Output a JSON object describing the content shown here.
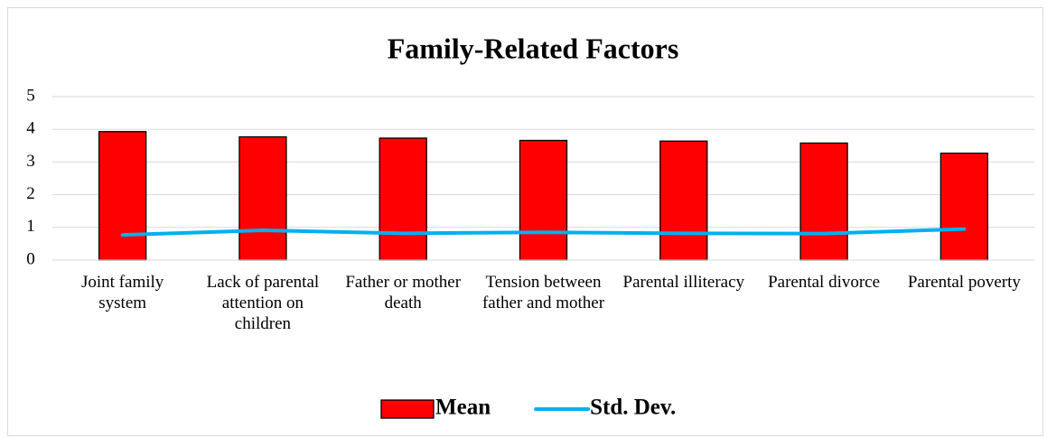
{
  "chart_data": {
    "type": "bar",
    "title": "Family-Related Factors",
    "categories": [
      "Joint family system",
      "Lack of parental attention on children",
      "Father or mother death",
      "Tension between father and mother",
      "Parental illiteracy",
      "Parental divorce",
      "Parental poverty"
    ],
    "series": [
      {
        "name": "Mean",
        "type": "bar",
        "color": "#ff0000",
        "values": [
          3.93,
          3.77,
          3.73,
          3.66,
          3.64,
          3.58,
          3.27
        ]
      },
      {
        "name": "Std. Dev.",
        "type": "line",
        "color": "#00b0f0",
        "values": [
          0.77,
          0.91,
          0.82,
          0.85,
          0.82,
          0.81,
          0.95
        ]
      }
    ],
    "ylim": [
      0,
      5
    ],
    "yticks": [
      0,
      1,
      2,
      3,
      4,
      5
    ],
    "grid": true,
    "legend": "bottom"
  }
}
